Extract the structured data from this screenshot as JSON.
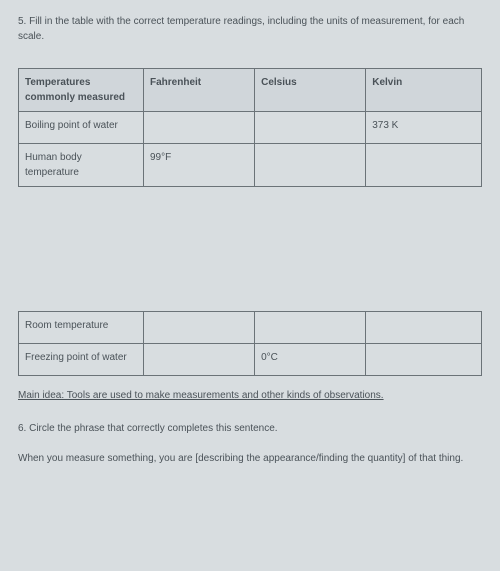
{
  "question5": {
    "prompt": "5. Fill in the table with the correct temperature readings, including the units of measurement, for each scale."
  },
  "table1": {
    "headers": [
      "Temperatures commonly measured",
      "Fahrenheit",
      "Celsius",
      "Kelvin"
    ],
    "rows": [
      {
        "label": "Boiling point of water",
        "f": "",
        "c": "",
        "k": "373 K"
      },
      {
        "label": "Human body temperature",
        "f": "99°F",
        "c": "",
        "k": ""
      }
    ]
  },
  "table2": {
    "rows": [
      {
        "label": "Room temperature",
        "f": "",
        "c": "",
        "k": ""
      },
      {
        "label": "Freezing point of water",
        "f": "",
        "c": "0°C",
        "k": ""
      }
    ]
  },
  "main_idea": "Main idea: Tools are used to make measurements and other kinds of observations.",
  "question6": {
    "prompt": "6. Circle the phrase that correctly completes this sentence.",
    "sentence": "When you measure something, you are [describing the appearance/finding the quantity] of that thing."
  }
}
